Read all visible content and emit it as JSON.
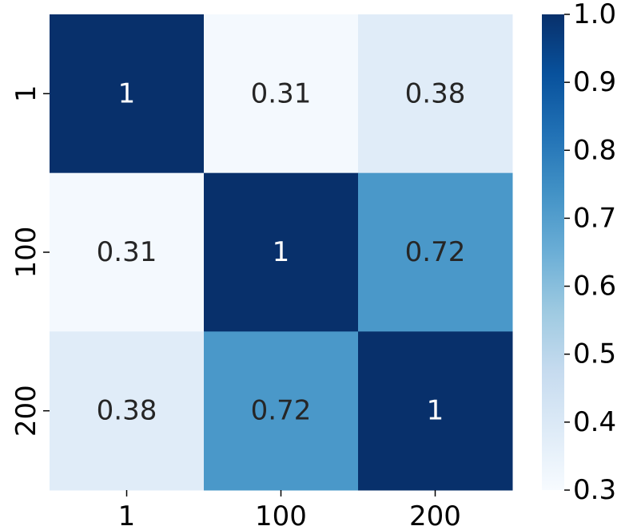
{
  "chart_data": {
    "type": "heatmap",
    "title": "",
    "xlabel": "",
    "ylabel": "",
    "x_categories": [
      "1",
      "100",
      "200"
    ],
    "y_categories": [
      "1",
      "100",
      "200"
    ],
    "values": [
      [
        1,
        0.31,
        0.38
      ],
      [
        0.31,
        1,
        0.72
      ],
      [
        0.38,
        0.72,
        1
      ]
    ],
    "annotations": [
      [
        "1",
        "0.31",
        "0.38"
      ],
      [
        "0.31",
        "1",
        "0.72"
      ],
      [
        "0.38",
        "0.72",
        "1"
      ]
    ],
    "colorbar": {
      "range": [
        0.3,
        1.0
      ],
      "ticks": [
        "0.3",
        "0.4",
        "0.5",
        "0.6",
        "0.7",
        "0.8",
        "0.9",
        "1.0"
      ],
      "colormap": "Blues",
      "location": "right"
    }
  }
}
